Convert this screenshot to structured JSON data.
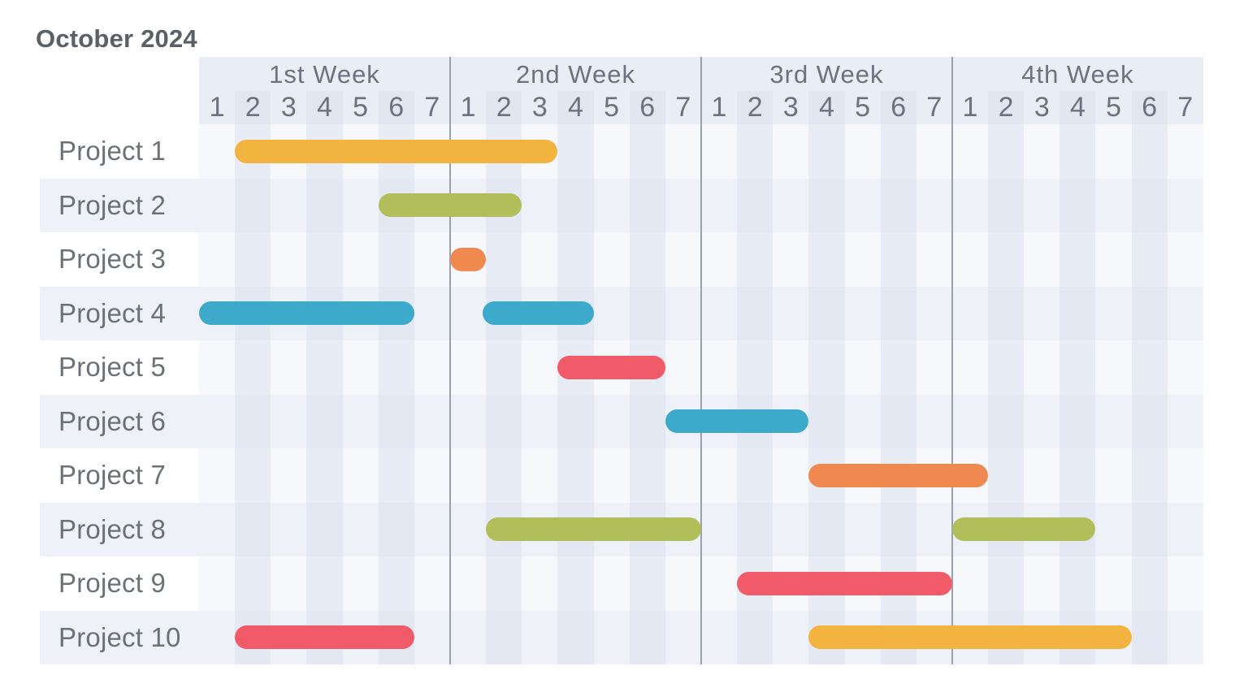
{
  "chart_data": {
    "type": "gantt",
    "title": "October 2024",
    "weeks": [
      "1st Week",
      "2nd Week",
      "3rd Week",
      "4th Week"
    ],
    "days_per_week": 7,
    "day_labels": [
      "1",
      "2",
      "3",
      "4",
      "5",
      "6",
      "7"
    ],
    "rows": [
      {
        "label": "Project 1",
        "bars": [
          {
            "start": 1,
            "end": 10,
            "color": "yellow"
          }
        ]
      },
      {
        "label": "Project 2",
        "bars": [
          {
            "start": 5,
            "end": 9,
            "color": "olive"
          }
        ]
      },
      {
        "label": "Project 3",
        "bars": [
          {
            "start": 7,
            "end": 8,
            "color": "orange"
          }
        ]
      },
      {
        "label": "Project 4",
        "bars": [
          {
            "start": 0,
            "end": 6,
            "color": "blue"
          },
          {
            "start": 7.9,
            "end": 11,
            "color": "blue"
          }
        ]
      },
      {
        "label": "Project 5",
        "bars": [
          {
            "start": 10,
            "end": 13,
            "color": "red"
          }
        ]
      },
      {
        "label": "Project 6",
        "bars": [
          {
            "start": 13,
            "end": 17,
            "color": "blue"
          }
        ]
      },
      {
        "label": "Project 7",
        "bars": [
          {
            "start": 17,
            "end": 22,
            "color": "orange"
          }
        ]
      },
      {
        "label": "Project 8",
        "bars": [
          {
            "start": 8,
            "end": 14,
            "color": "olive"
          },
          {
            "start": 21,
            "end": 25,
            "color": "olive"
          }
        ]
      },
      {
        "label": "Project 9",
        "bars": [
          {
            "start": 15,
            "end": 21,
            "color": "red"
          }
        ]
      },
      {
        "label": "Project 10",
        "bars": [
          {
            "start": 1,
            "end": 6,
            "color": "red"
          },
          {
            "start": 17,
            "end": 26,
            "color": "yellow"
          }
        ]
      }
    ],
    "colors": {
      "yellow": "#F3B43F",
      "olive": "#B2BE59",
      "orange": "#EF8950",
      "blue": "#3DA9CB",
      "red": "#F15A68"
    },
    "style_colors": {
      "header_band": "#E9EDF5",
      "row_band": "#EEF1F8",
      "grid_base": "#F6F8FB",
      "stripe": "rgba(214,222,237,0.45)",
      "week_line": "#99A1AB"
    }
  }
}
